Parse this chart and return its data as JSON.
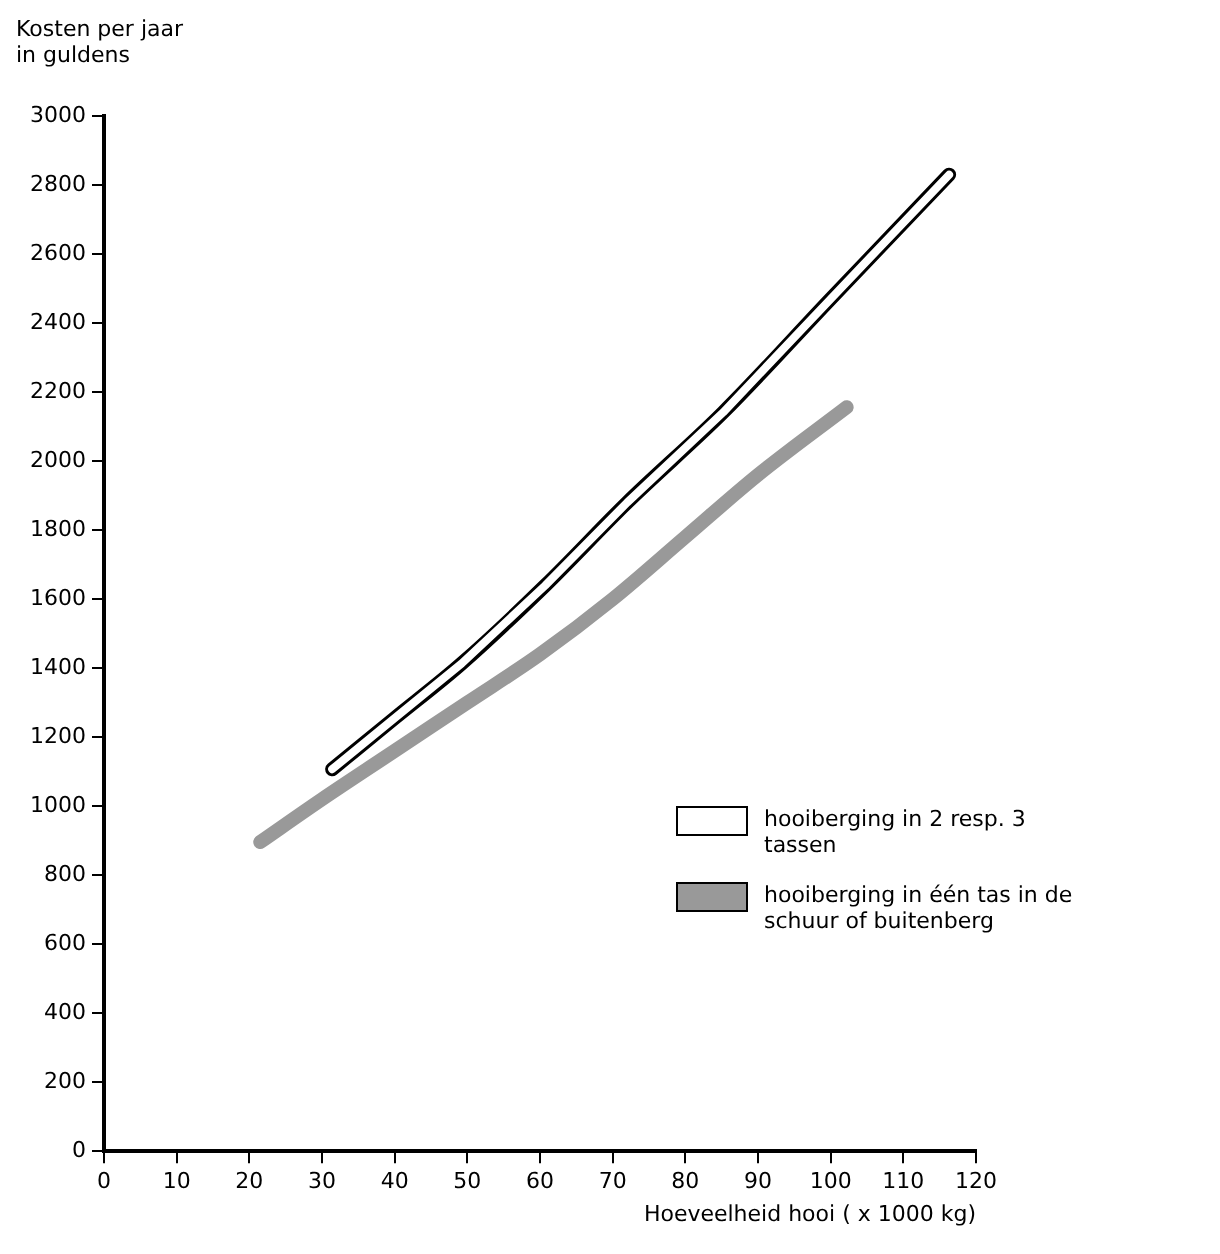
{
  "chart_data": {
    "type": "line",
    "ylabel": "Kosten per jaar\nin guldens",
    "xlabel": "Hoeveelheid hooi ( x 1000 kg)",
    "series": [
      {
        "name": "hooiberging in 2 resp. 3 tassen",
        "color": "#000000",
        "x": [
          31.4,
          40,
          49.2,
          60.7,
          72,
          85.2,
          100,
          116.3
        ],
        "values": [
          1107,
          1255,
          1413,
          1639,
          1880,
          2141,
          2470,
          2830
        ]
      },
      {
        "name": "hooiberging in één tas in de schuur of buitenberg",
        "color": "#999999",
        "x": [
          21.5,
          30,
          40,
          50,
          60,
          70,
          80,
          90,
          102.2
        ],
        "values": [
          896,
          1020,
          1160,
          1300,
          1440,
          1600,
          1780,
          1960,
          2156
        ]
      }
    ],
    "xlim": [
      0,
      120
    ],
    "xticks": [
      0,
      10,
      20,
      30,
      40,
      50,
      60,
      70,
      80,
      90,
      100,
      110,
      120
    ],
    "ylim": [
      0,
      3000
    ],
    "yticks": [
      0,
      200,
      400,
      600,
      800,
      1000,
      1200,
      1400,
      1600,
      1800,
      2000,
      2200,
      2400,
      2600,
      2800,
      3000
    ],
    "grid": false,
    "legend": "right",
    "marker": "none"
  }
}
